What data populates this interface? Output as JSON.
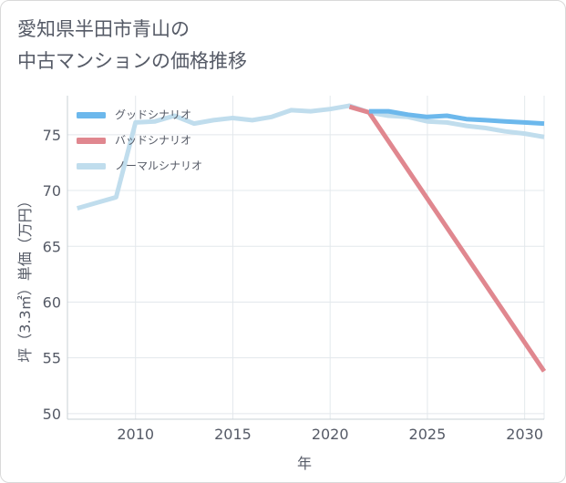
{
  "chart_data": {
    "type": "line",
    "title": "愛知県半田市青山の\n中古マンションの価格推移",
    "xlabel": "年",
    "ylabel": "坪（3.3㎡）単価（万円）",
    "xlim": [
      2006.5,
      2031
    ],
    "ylim": [
      49.5,
      78.5
    ],
    "x_ticks": [
      2010,
      2015,
      2020,
      2025,
      2030
    ],
    "y_ticks": [
      50,
      55,
      60,
      65,
      70,
      75
    ],
    "grid": true,
    "legend_position": "top-left",
    "series": [
      {
        "name": "グッドシナリオ",
        "color": "#6cb8ec",
        "x": [
          2022,
          2023,
          2024,
          2025,
          2026,
          2027,
          2028,
          2029,
          2030,
          2031
        ],
        "y": [
          77.1,
          77.1,
          76.8,
          76.6,
          76.7,
          76.4,
          76.3,
          76.2,
          76.1,
          76.0
        ]
      },
      {
        "name": "バッドシナリオ",
        "color": "#e0878f",
        "x": [
          2021,
          2022,
          2031
        ],
        "y": [
          77.5,
          77.0,
          53.8
        ]
      },
      {
        "name": "ノーマルシナリオ",
        "color": "#c0dded",
        "x": [
          2007,
          2008,
          2009,
          2010,
          2011,
          2012,
          2013,
          2014,
          2015,
          2016,
          2017,
          2018,
          2019,
          2020,
          2021,
          2022,
          2023,
          2024,
          2025,
          2026,
          2027,
          2028,
          2029,
          2030,
          2031
        ],
        "y": [
          68.4,
          68.9,
          69.4,
          76.1,
          76.2,
          76.7,
          76.0,
          76.3,
          76.5,
          76.3,
          76.6,
          77.2,
          77.1,
          77.3,
          77.6,
          77.0,
          76.7,
          76.6,
          76.2,
          76.1,
          75.8,
          75.6,
          75.3,
          75.1,
          74.8
        ]
      }
    ]
  }
}
